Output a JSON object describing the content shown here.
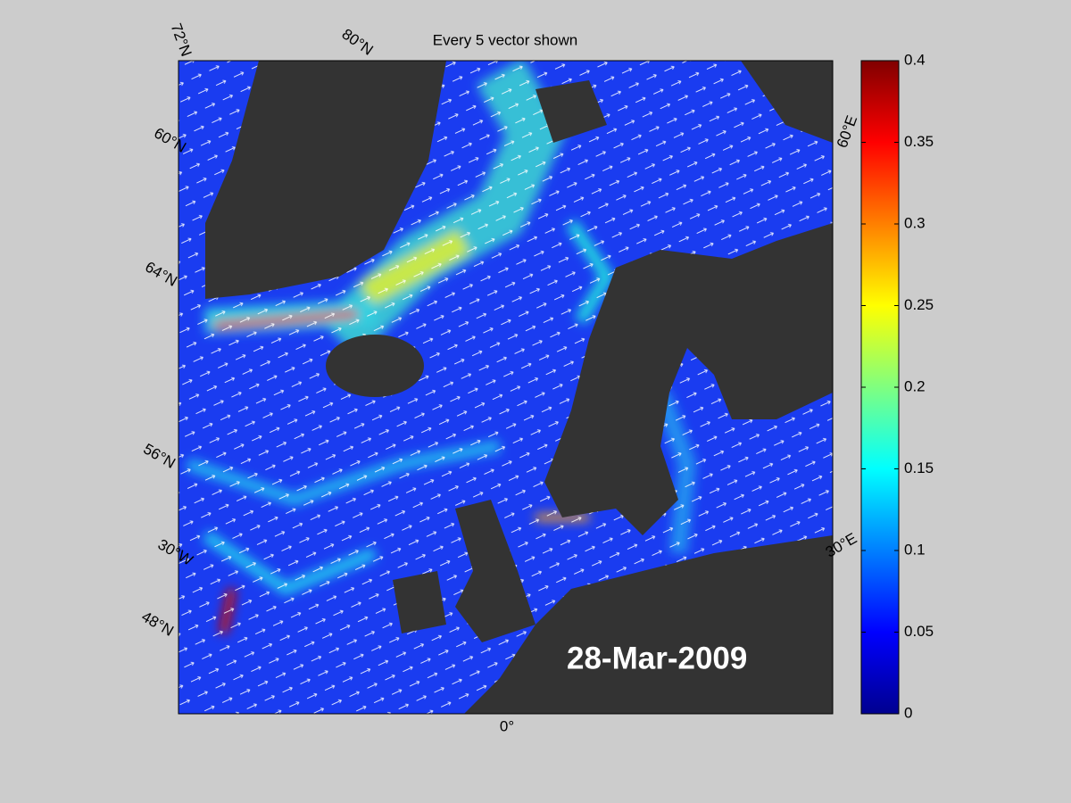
{
  "title": "Every 5 vector shown",
  "date_label": "28-Mar-2009",
  "graticule_labels": {
    "lat": [
      "72°N",
      "60°N",
      "64°N",
      "56°N",
      "48°N",
      "80°N"
    ],
    "lon": [
      "60°E",
      "30°W",
      "30°E",
      "0°"
    ]
  },
  "colorbar": {
    "colormap": "jet",
    "lim": [
      0,
      0.4
    ],
    "ticks": [
      0,
      0.05,
      0.1,
      0.15,
      0.2,
      0.25,
      0.3,
      0.35,
      0.4
    ]
  }
}
